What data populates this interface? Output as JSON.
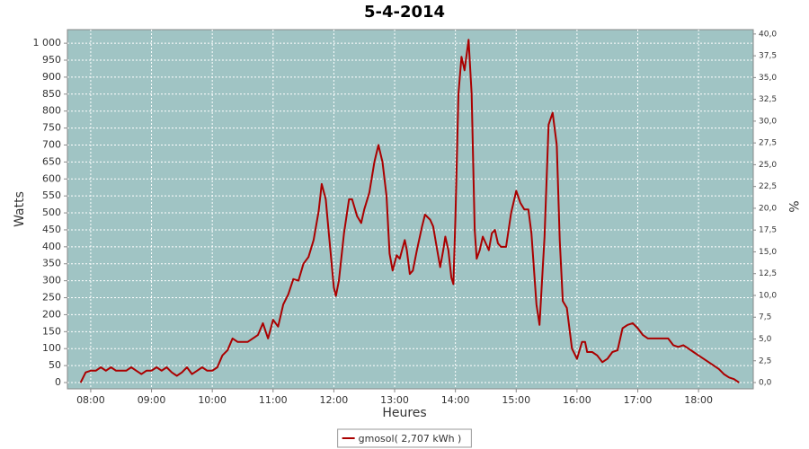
{
  "chart_data": {
    "type": "line",
    "title": "5-4-2014",
    "x_label": "Heures",
    "y_label": "Watts",
    "y2_label": "%",
    "x": [
      "07:50",
      "07:55",
      "08:00",
      "08:05",
      "08:10",
      "08:15",
      "08:20",
      "08:25",
      "08:30",
      "08:35",
      "08:40",
      "08:45",
      "08:50",
      "08:55",
      "09:00",
      "09:05",
      "09:10",
      "09:15",
      "09:20",
      "09:25",
      "09:30",
      "09:35",
      "09:40",
      "09:45",
      "09:50",
      "09:55",
      "10:00",
      "10:05",
      "10:10",
      "10:15",
      "10:20",
      "10:25",
      "10:30",
      "10:35",
      "10:40",
      "10:45",
      "10:50",
      "10:55",
      "11:00",
      "11:05",
      "11:10",
      "11:15",
      "11:20",
      "11:25",
      "11:30",
      "11:35",
      "11:40",
      "11:45",
      "11:48",
      "11:52",
      "11:55",
      "12:00",
      "12:02",
      "12:05",
      "12:10",
      "12:15",
      "12:18",
      "12:23",
      "12:27",
      "12:30",
      "12:35",
      "12:40",
      "12:44",
      "12:48",
      "12:52",
      "12:55",
      "12:58",
      "13:02",
      "13:05",
      "13:10",
      "13:12",
      "13:15",
      "13:18",
      "13:22",
      "13:27",
      "13:30",
      "13:35",
      "13:38",
      "13:42",
      "13:45",
      "13:48",
      "13:50",
      "13:53",
      "13:56",
      "13:58",
      "14:00",
      "14:03",
      "14:06",
      "14:09",
      "14:13",
      "14:16",
      "14:19",
      "14:21",
      "14:24",
      "14:27",
      "14:30",
      "14:33",
      "14:36",
      "14:39",
      "14:42",
      "14:45",
      "14:50",
      "14:55",
      "15:00",
      "15:04",
      "15:08",
      "15:12",
      "15:15",
      "15:20",
      "15:23",
      "15:28",
      "15:32",
      "15:36",
      "15:40",
      "15:43",
      "15:46",
      "15:50",
      "15:55",
      "16:00",
      "16:05",
      "16:08",
      "16:10",
      "16:15",
      "16:20",
      "16:25",
      "16:30",
      "16:35",
      "16:40",
      "16:45",
      "16:50",
      "16:55",
      "17:00",
      "17:05",
      "17:10",
      "17:15",
      "17:20",
      "17:25",
      "17:30",
      "17:35",
      "17:40",
      "17:45",
      "17:50",
      "17:55",
      "18:00",
      "18:05",
      "18:10",
      "18:15",
      "18:20",
      "18:25",
      "18:30",
      "18:35",
      "18:40"
    ],
    "series": [
      {
        "name": "gmosol( 2,707 kWh )",
        "color": "#aa0000",
        "values": [
          0,
          30,
          35,
          35,
          45,
          35,
          45,
          35,
          35,
          35,
          45,
          35,
          25,
          35,
          35,
          45,
          35,
          45,
          30,
          20,
          30,
          45,
          25,
          35,
          45,
          35,
          35,
          45,
          80,
          95,
          130,
          120,
          120,
          120,
          130,
          140,
          175,
          130,
          185,
          165,
          230,
          260,
          305,
          300,
          350,
          370,
          420,
          505,
          585,
          540,
          440,
          280,
          255,
          300,
          440,
          540,
          540,
          490,
          470,
          510,
          560,
          650,
          700,
          650,
          550,
          380,
          330,
          375,
          365,
          420,
          390,
          320,
          330,
          390,
          460,
          495,
          480,
          460,
          390,
          340,
          390,
          430,
          390,
          310,
          290,
          490,
          850,
          960,
          920,
          1010,
          850,
          450,
          365,
          390,
          430,
          410,
          390,
          440,
          450,
          410,
          400,
          400,
          500,
          565,
          530,
          510,
          510,
          440,
          230,
          170,
          430,
          760,
          795,
          700,
          420,
          240,
          220,
          100,
          70,
          120,
          120,
          90,
          90,
          80,
          60,
          70,
          90,
          95,
          160,
          170,
          175,
          160,
          140,
          130,
          130,
          130,
          130,
          130,
          110,
          105,
          110,
          100,
          90,
          80,
          70,
          60,
          50,
          40,
          25,
          15,
          10,
          0
        ]
      }
    ],
    "xlim": [
      "07:37",
      "18:54"
    ],
    "xticks": [
      "08:00",
      "09:00",
      "10:00",
      "11:00",
      "12:00",
      "13:00",
      "14:00",
      "15:00",
      "16:00",
      "17:00",
      "18:00"
    ],
    "ylim": [
      -18.5,
      1040
    ],
    "yticks": [
      0,
      50,
      100,
      150,
      200,
      250,
      300,
      350,
      400,
      450,
      500,
      550,
      600,
      650,
      700,
      750,
      800,
      850,
      900,
      950,
      {
        "value": 1000,
        "label": "1 000"
      }
    ],
    "y2lim": [
      -0.72,
      40.5
    ],
    "y2ticks": [
      {
        "value": 0,
        "label": "0,0"
      },
      {
        "value": 2.5,
        "label": "2,5"
      },
      {
        "value": 5,
        "label": "5,0"
      },
      {
        "value": 7.5,
        "label": "7,5"
      },
      {
        "value": 10,
        "label": "10,0"
      },
      {
        "value": 12.5,
        "label": "12,5"
      },
      {
        "value": 15,
        "label": "15,0"
      },
      {
        "value": 17.5,
        "label": "17,5"
      },
      {
        "value": 20,
        "label": "20,0"
      },
      {
        "value": 22.5,
        "label": "22,5"
      },
      {
        "value": 25,
        "label": "25,0"
      },
      {
        "value": 27.5,
        "label": "27,5"
      },
      {
        "value": 30,
        "label": "30,0"
      },
      {
        "value": 32.5,
        "label": "32,5"
      },
      {
        "value": 35,
        "label": "35,0"
      },
      {
        "value": 37.5,
        "label": "37,5"
      },
      {
        "value": 40,
        "label": "40,0"
      }
    ],
    "grid": true,
    "background": "#a0c4c4",
    "legend": "bottom"
  }
}
